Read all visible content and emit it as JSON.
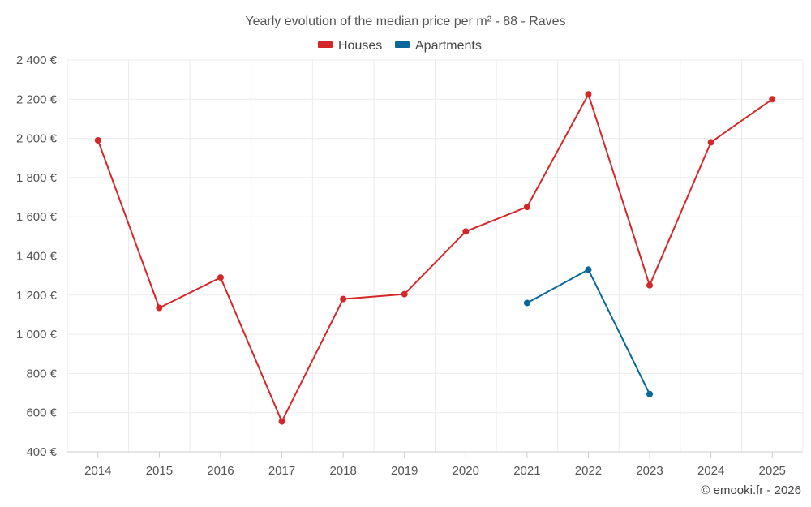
{
  "chart_data": {
    "type": "line",
    "title": "Yearly evolution of the median price per m² - 88 - Raves",
    "categories": [
      "2014",
      "2015",
      "2016",
      "2017",
      "2018",
      "2019",
      "2020",
      "2021",
      "2022",
      "2023",
      "2024",
      "2025"
    ],
    "ylim": [
      400,
      2400
    ],
    "yticks": [
      400,
      600,
      800,
      1000,
      1200,
      1400,
      1600,
      1800,
      2000,
      2200,
      2400
    ],
    "ytick_labels": [
      "400 €",
      "600 €",
      "800 €",
      "1 000 €",
      "1 200 €",
      "1 400 €",
      "1 600 €",
      "1 800 €",
      "2 000 €",
      "2 200 €",
      "2 400 €"
    ],
    "grid": true,
    "legend_position": "top-center",
    "series": [
      {
        "name": "Houses",
        "color": "#d62728",
        "values": [
          1990,
          1135,
          1290,
          555,
          1180,
          1205,
          1525,
          1650,
          2225,
          1250,
          1980,
          2200
        ]
      },
      {
        "name": "Apartments",
        "color": "#08689c",
        "values": [
          null,
          null,
          null,
          null,
          null,
          null,
          null,
          1160,
          1330,
          695,
          null,
          null
        ]
      }
    ]
  },
  "credit": "© emooki.fr - 2026"
}
